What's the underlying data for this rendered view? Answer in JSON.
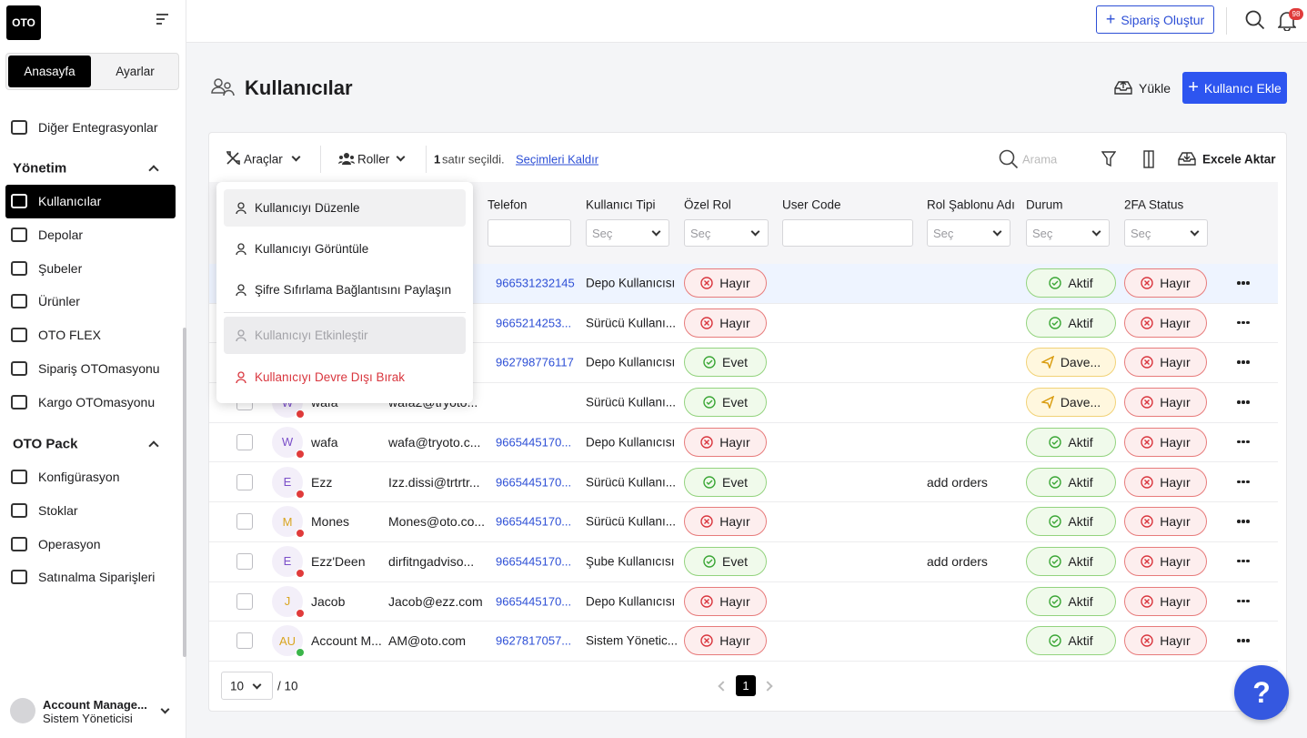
{
  "sidebar": {
    "logo": "OTO",
    "tabs": [
      "Anasayfa",
      "Ayarlar"
    ],
    "top_items": [
      "Diğer Entegrasyonlar"
    ],
    "sections": [
      {
        "title": "Yönetim",
        "items": [
          "Kullanıcılar",
          "Depolar",
          "Şubeler",
          "Ürünler",
          "OTO FLEX",
          "Sipariş OTOmasyonu",
          "Kargo OTOmasyonu"
        ]
      },
      {
        "title": "OTO Pack",
        "items": [
          "Konfigürasyon",
          "Stoklar",
          "Operasyon",
          "Satınalma Siparişleri"
        ]
      }
    ],
    "user": {
      "name": "Account Manage...",
      "role": "Sistem Yöneticisi"
    }
  },
  "topbar": {
    "create_order": "Sipariş Oluştur",
    "notification_count": "98"
  },
  "header": {
    "title": "Kullanıcılar",
    "upload": "Yükle",
    "add_user": "Kullanıcı Ekle"
  },
  "toolbar": {
    "tools": "Araçlar",
    "roles": "Roller",
    "selected_count": "1",
    "selected_text": "satır seçildi.",
    "clear_selection": "Seçimleri Kaldır",
    "search_placeholder": "Arama",
    "export": "Excele Aktar"
  },
  "menu": {
    "items": [
      {
        "label": "Kullanıcıyı Düzenle",
        "state": "hover"
      },
      {
        "label": "Kullanıcıyı Görüntüle",
        "state": "normal"
      },
      {
        "label": "Şifre Sıfırlama Bağlantısını Paylaşın",
        "state": "normal"
      },
      {
        "label": "Kullanıcıyı Etkinleştir",
        "state": "disabled"
      },
      {
        "label": "Kullanıcıyı Devre Dışı Bırak",
        "state": "danger"
      }
    ]
  },
  "table": {
    "filter_placeholder": "Seç",
    "columns": [
      {
        "label": "Telefon",
        "filter": "input"
      },
      {
        "label": "Kullanıcı Tipi",
        "filter": "select"
      },
      {
        "label": "Özel Rol",
        "filter": "select"
      },
      {
        "label": "User Code",
        "filter": "input"
      },
      {
        "label": "Rol Şablonu Adı",
        "filter": "select"
      },
      {
        "label": "Durum",
        "filter": "select"
      },
      {
        "label": "2FA Status",
        "filter": "select"
      }
    ],
    "rows": [
      {
        "selected": true,
        "phone": "966531232145",
        "type": "Depo Kullanıcısı",
        "special_role": {
          "text": "Hayır",
          "tone": "red"
        },
        "status": {
          "text": "Aktif",
          "tone": "green"
        },
        "twofa": {
          "text": "Hayır",
          "tone": "red"
        }
      },
      {
        "phone": "9665214253...",
        "type": "Sürücü Kullanı...",
        "special_role": {
          "text": "Hayır",
          "tone": "red"
        },
        "status": {
          "text": "Aktif",
          "tone": "green"
        },
        "twofa": {
          "text": "Hayır",
          "tone": "red"
        }
      },
      {
        "phone": "962798776117",
        "type": "Depo Kullanıcısı",
        "special_role": {
          "text": "Evet",
          "tone": "green"
        },
        "status": {
          "text": "Dave...",
          "tone": "yellow"
        },
        "twofa": {
          "text": "Hayır",
          "tone": "red"
        }
      },
      {
        "initial": "W",
        "avatar_color": "#7b4fc9",
        "dot": "#e03b3b",
        "name": "wafa",
        "email": "wafa2@tryoto...",
        "type": "Sürücü Kullanı...",
        "special_role": {
          "text": "Evet",
          "tone": "green"
        },
        "status": {
          "text": "Dave...",
          "tone": "yellow"
        },
        "twofa": {
          "text": "Hayır",
          "tone": "red"
        }
      },
      {
        "initial": "W",
        "avatar_color": "#7b4fc9",
        "dot": "#e03b3b",
        "name": "wafa",
        "email": "wafa@tryoto.c...",
        "phone": "9665445170...",
        "type": "Depo Kullanıcısı",
        "special_role": {
          "text": "Hayır",
          "tone": "red"
        },
        "status": {
          "text": "Aktif",
          "tone": "green"
        },
        "twofa": {
          "text": "Hayır",
          "tone": "red"
        }
      },
      {
        "initial": "E",
        "avatar_color": "#7b4fc9",
        "dot": "#e03b3b",
        "name": "Ezz",
        "email": "Izz.dissi@trtrtr...",
        "phone": "9665445170...",
        "type": "Sürücü Kullanı...",
        "special_role": {
          "text": "Evet",
          "tone": "green"
        },
        "template": "add orders",
        "status": {
          "text": "Aktif",
          "tone": "green"
        },
        "twofa": {
          "text": "Hayır",
          "tone": "red"
        }
      },
      {
        "initial": "M",
        "avatar_color": "#d9a520",
        "dot": "#e03b3b",
        "name": "Mones",
        "email": "Mones@oto.co...",
        "phone": "9665445170...",
        "type": "Sürücü Kullanı...",
        "special_role": {
          "text": "Hayır",
          "tone": "red"
        },
        "status": {
          "text": "Aktif",
          "tone": "green"
        },
        "twofa": {
          "text": "Hayır",
          "tone": "red"
        }
      },
      {
        "initial": "E",
        "avatar_color": "#7b4fc9",
        "dot": "#e03b3b",
        "name": "Ezz'Deen",
        "email": "dirfitngadviso...",
        "phone": "9665445170...",
        "type": "Şube Kullanıcısı",
        "special_role": {
          "text": "Evet",
          "tone": "green"
        },
        "template": "add orders",
        "status": {
          "text": "Aktif",
          "tone": "green"
        },
        "twofa": {
          "text": "Hayır",
          "tone": "red"
        }
      },
      {
        "initial": "J",
        "avatar_color": "#d9a520",
        "dot": "#e03b3b",
        "name": "Jacob",
        "email": "Jacob@ezz.com",
        "phone": "9665445170...",
        "type": "Depo Kullanıcısı",
        "special_role": {
          "text": "Hayır",
          "tone": "red"
        },
        "status": {
          "text": "Aktif",
          "tone": "green"
        },
        "twofa": {
          "text": "Hayır",
          "tone": "red"
        }
      },
      {
        "initial": "AU",
        "avatar_color": "#d9a520",
        "dot": "#3bb54a",
        "name": "Account M...",
        "email": "AM@oto.com",
        "phone": "9627817057...",
        "type": "Sistem Yönetic...",
        "special_role": {
          "text": "Hayır",
          "tone": "red"
        },
        "status": {
          "text": "Aktif",
          "tone": "green"
        },
        "twofa": {
          "text": "Hayır",
          "tone": "red"
        }
      }
    ]
  },
  "pagination": {
    "page_size": "10",
    "total": "/ 10",
    "current": "1"
  },
  "help": "?"
}
